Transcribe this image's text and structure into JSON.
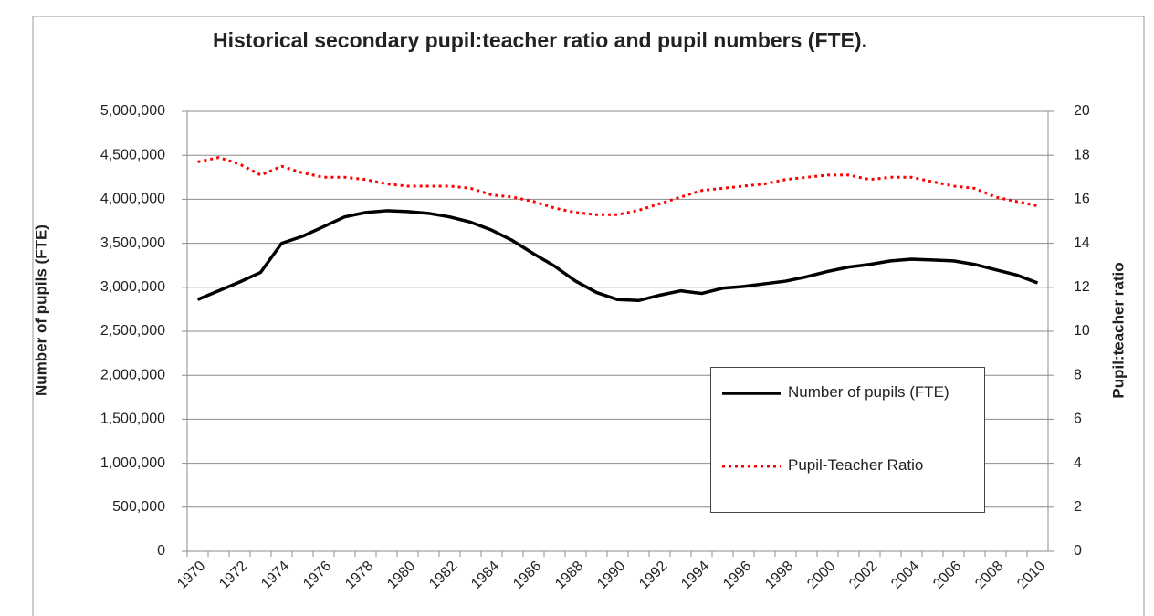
{
  "chart_data": {
    "type": "line",
    "title": "Historical secondary pupil:teacher ratio and pupil numbers (FTE).",
    "y_label": "Number of pupils (FTE)",
    "y2_label": "Pupil:teacher ratio",
    "categories": [
      "1970",
      null,
      "1972",
      null,
      "1974",
      null,
      "1976",
      null,
      "1978",
      null,
      "1980",
      null,
      "1982",
      null,
      "1984",
      null,
      "1986",
      null,
      "1988",
      null,
      "1990",
      null,
      "1992",
      null,
      "1994",
      null,
      "1996",
      null,
      "1998",
      null,
      "2000",
      null,
      "2002",
      null,
      "2004",
      null,
      "2006",
      null,
      "2008",
      null,
      "2010"
    ],
    "series": [
      {
        "name": "Number of pupils (FTE)",
        "color": "#000000",
        "values": [
          2860000,
          2960000,
          3060000,
          3170000,
          3500000,
          3580000,
          3690000,
          3800000,
          3850000,
          3870000,
          3860000,
          3840000,
          3800000,
          3740000,
          3650000,
          3530000,
          3380000,
          3240000,
          3070000,
          2940000,
          2860000,
          2850000,
          2910000,
          2960000,
          2930000,
          2990000,
          3010000,
          3040000,
          3070000,
          3120000,
          3180000,
          3230000,
          3260000,
          3300000,
          3320000,
          3310000,
          3300000,
          3260000,
          3200000,
          3140000,
          3050000
        ]
      },
      {
        "name": "Pupil-Teacher Ratio",
        "color": "#ff0000",
        "axis": "y2",
        "values": [
          17.7,
          17.9,
          17.6,
          17.1,
          17.5,
          17.2,
          17.0,
          17.0,
          16.9,
          16.7,
          16.6,
          16.6,
          16.6,
          16.5,
          16.2,
          16.1,
          15.9,
          15.6,
          15.4,
          15.3,
          15.3,
          15.5,
          15.8,
          16.1,
          16.4,
          16.5,
          16.6,
          16.7,
          16.9,
          17.0,
          17.1,
          17.1,
          16.9,
          17.0,
          17.0,
          16.8,
          16.6,
          16.5,
          16.1,
          15.9,
          15.7
        ]
      }
    ],
    "ylim": [
      0,
      5000000
    ],
    "yticks": [
      0,
      {
        "value": 500000,
        "label": "500,000"
      },
      {
        "value": 1000000,
        "label": "1,000,000"
      },
      {
        "value": 1500000,
        "label": "1,500,000"
      },
      {
        "value": 2000000,
        "label": "2,000,000"
      },
      {
        "value": 2500000,
        "label": "2,500,000"
      },
      {
        "value": 3000000,
        "label": "3,000,000"
      },
      {
        "value": 3500000,
        "label": "3,500,000"
      },
      {
        "value": 4000000,
        "label": "4,000,000"
      },
      {
        "value": 4500000,
        "label": "4,500,000"
      },
      {
        "value": 5000000,
        "label": "5,000,000"
      }
    ],
    "y2lim": [
      0,
      20
    ],
    "y2ticks": [
      0,
      2,
      4,
      6,
      8,
      10,
      12,
      14,
      16,
      18,
      20
    ],
    "grid": true
  }
}
